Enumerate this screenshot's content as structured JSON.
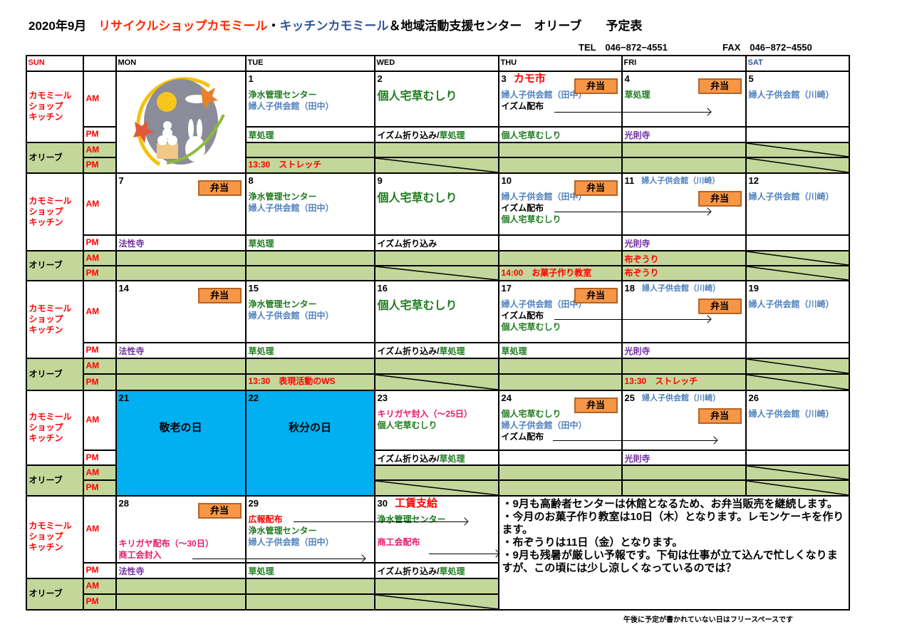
{
  "header": {
    "year_month": "2020年9月",
    "title_red": "リサイクルショップカモミール",
    "title_sep": "・",
    "title_blue": "キッチンカモミール",
    "title_rest": "＆地域活動支援センター　オリーブ　　予定表",
    "tel": "TEL　046−872−4551",
    "fax": "FAX　046−872−4550"
  },
  "columns": [
    "SUN",
    "",
    "MON",
    "TUE",
    "WED",
    "THU",
    "FRI",
    "SAT"
  ],
  "labels": {
    "shop": "カモミール\nショップ\nキッチン",
    "olive": "オリーブ",
    "am": "AM",
    "pm": "PM"
  },
  "bento_label": "弁当",
  "colors": {
    "k": "#000000",
    "g": "#1e7b1e",
    "b": "#4f81bd",
    "p": "#7030a0",
    "r": "#ff0000",
    "m": "#e8196b",
    "olive": "#c4d79b",
    "holiday": "#00b0f0",
    "bento": "#f79646",
    "sun": "#ff0000",
    "sat": "#2f5597"
  },
  "moon_icon": "tsukimi-rabbit-dango-illustration",
  "weeks": [
    {
      "days": [
        {
          "col": 2,
          "image": true
        },
        {
          "col": 3,
          "date": "1",
          "am": [
            [
              "浄水管理センター",
              "g"
            ],
            [
              "婦人子供会館（田中）",
              "b"
            ]
          ],
          "pm": [
            [
              "草処理",
              "g"
            ]
          ],
          "opm": [
            [
              "13:30　ストレッチ",
              "r"
            ]
          ]
        },
        {
          "col": 4,
          "date": "2",
          "am": [
            [
              "個人宅草むしり",
              "g",
              true
            ]
          ],
          "pm": [
            [
              "イズム折り込み/",
              "k"
            ],
            [
              "草処理",
              "g"
            ]
          ],
          "diag_pm": true
        },
        {
          "col": 5,
          "date": "3",
          "event": "カモ市",
          "bento": 1,
          "am": [
            [
              "婦人子供会館（田中）",
              "b"
            ],
            [
              "イズム配布",
              "k"
            ]
          ],
          "pm": [
            [
              "個人宅草むしり",
              "g"
            ]
          ]
        },
        {
          "col": 6,
          "date": "4",
          "bento": 1,
          "am": [
            [
              "草処理",
              "g"
            ]
          ],
          "pm": [
            [
              "光則寺",
              "p"
            ]
          ]
        },
        {
          "col": 7,
          "date": "5",
          "am": [
            [
              "婦人子供会館（川崎）",
              "b"
            ]
          ],
          "diag_am": true,
          "diag_pm": true
        }
      ]
    },
    {
      "days": [
        {
          "col": 2,
          "date": "7",
          "bento": 1,
          "pm": [
            [
              "法性寺",
              "p"
            ]
          ]
        },
        {
          "col": 3,
          "date": "8",
          "am": [
            [
              "浄水管理センター",
              "g"
            ],
            [
              "婦人子供会館（田中）",
              "b"
            ]
          ],
          "pm": [
            [
              "草処理",
              "g"
            ]
          ]
        },
        {
          "col": 4,
          "date": "9",
          "am": [
            [
              "個人宅草むしり",
              "g",
              true
            ]
          ],
          "pm": [
            [
              "イズム折り込み",
              "k"
            ]
          ],
          "diag_pm": true
        },
        {
          "col": 5,
          "date": "10",
          "bento": 1,
          "am": [
            [
              "婦人子供会館（田中）",
              "b"
            ],
            [
              "イズム配布",
              "k"
            ],
            [
              "個人宅草むしり",
              "g"
            ]
          ],
          "opm": [
            [
              "14:00　お菓子作り教室",
              "r"
            ]
          ]
        },
        {
          "col": 6,
          "date": "11",
          "inline": "婦人子供会館（川崎）",
          "bento": 2,
          "pm": [
            [
              "光則寺",
              "p"
            ]
          ],
          "oam": [
            [
              "布ぞうり",
              "r"
            ]
          ],
          "opm": [
            [
              "布ぞうり",
              "r"
            ]
          ]
        },
        {
          "col": 7,
          "date": "12",
          "am": [
            [
              "婦人子供会館（川崎）",
              "b"
            ]
          ],
          "diag_am": true,
          "diag_pm": true
        }
      ]
    },
    {
      "days": [
        {
          "col": 2,
          "date": "14",
          "bento": 1,
          "pm": [
            [
              "法性寺",
              "p"
            ]
          ]
        },
        {
          "col": 3,
          "date": "15",
          "am": [
            [
              "浄水管理センター",
              "g"
            ],
            [
              "婦人子供会館（田中）",
              "b"
            ]
          ],
          "pm": [
            [
              "草処理",
              "g"
            ]
          ],
          "opm": [
            [
              "13:30　表現活動のWS",
              "r"
            ]
          ]
        },
        {
          "col": 4,
          "date": "16",
          "am": [
            [
              "個人宅草むしり",
              "g",
              true
            ]
          ],
          "pm": [
            [
              "イズム折り込み/",
              "k"
            ],
            [
              "草処理",
              "g"
            ]
          ],
          "diag_pm": true
        },
        {
          "col": 5,
          "date": "17",
          "bento": 1,
          "am": [
            [
              "婦人子供会館（田中）",
              "b"
            ],
            [
              "イズム配布",
              "k"
            ],
            [
              "個人宅草むしり",
              "g"
            ]
          ],
          "pm": [
            [
              "草処理",
              "g"
            ]
          ]
        },
        {
          "col": 6,
          "date": "18",
          "inline": "婦人子供会館（川崎）",
          "bento": 2,
          "pm": [
            [
              "光則寺",
              "p"
            ]
          ],
          "opm": [
            [
              "13:30　ストレッチ",
              "r"
            ]
          ]
        },
        {
          "col": 7,
          "date": "19",
          "am": [
            [
              "婦人子供会館（川崎）",
              "b"
            ]
          ],
          "diag_am": true,
          "diag_pm": true
        }
      ]
    },
    {
      "days": [
        {
          "col": 2,
          "date": "21",
          "holiday": "敬老の日"
        },
        {
          "col": 3,
          "date": "22",
          "holiday": "秋分の日"
        },
        {
          "col": 4,
          "date": "23",
          "am": [
            [
              "キリガヤ封入（〜25日）",
              "m"
            ],
            [
              "個人宅草むしり",
              "g"
            ]
          ],
          "pm": [
            [
              "イズム折り込み/",
              "k"
            ],
            [
              "草処理",
              "g"
            ]
          ],
          "diag_pm": true
        },
        {
          "col": 5,
          "date": "24",
          "bento": 1,
          "am": [
            [
              "個人宅草むしり",
              "g"
            ],
            [
              "婦人子供会館（田中）",
              "b"
            ],
            [
              "イズム配布",
              "k"
            ]
          ]
        },
        {
          "col": 6,
          "date": "25",
          "inline": "婦人子供会館（川崎）",
          "bento": 2,
          "pm": [
            [
              "光則寺",
              "p"
            ]
          ]
        },
        {
          "col": 7,
          "date": "26",
          "am": [
            [
              "婦人子供会館（川崎）",
              "b"
            ]
          ],
          "diag_am": true,
          "diag_pm": true
        }
      ]
    },
    {
      "days": [
        {
          "col": 2,
          "date": "28",
          "bento": 1,
          "am": [
            [
              "キリガヤ配布（〜30日）",
              "m"
            ],
            [
              "商工会封入",
              "m"
            ]
          ],
          "pm": [
            [
              "法性寺",
              "p"
            ]
          ]
        },
        {
          "col": 3,
          "date": "29",
          "am": [
            [
              "広報配布",
              "r"
            ],
            [
              "浄水管理センター",
              "g"
            ],
            [
              "婦人子供会館（田中）",
              "b"
            ]
          ],
          "pm": [
            [
              "草処理",
              "g"
            ]
          ]
        },
        {
          "col": 4,
          "date": "30",
          "event": "工賃支給",
          "am": [
            [
              "浄水管理センター",
              "g"
            ],
            [
              "",
              ""
            ],
            [
              "商工会配布",
              "m"
            ]
          ],
          "pm": [
            [
              "イズム折り込み/",
              "k"
            ],
            [
              "草処理",
              "g"
            ]
          ],
          "diag_pm": true
        }
      ]
    }
  ],
  "notes": "・9月も高齢者センターは休館となるため、お弁当販売を継続します。\n・今月のお菓子作り教室は10日（木）となります。レモンケーキを作ります。\n・布ぞうりは11日（金）となります。\n・9月も残暑が厳しい予報です。下旬は仕事が立て込んで忙しくなりますが、この頃には少し涼しくなっているのでは？",
  "footer": "午後に予定が書かれていない日はフリースペースです"
}
